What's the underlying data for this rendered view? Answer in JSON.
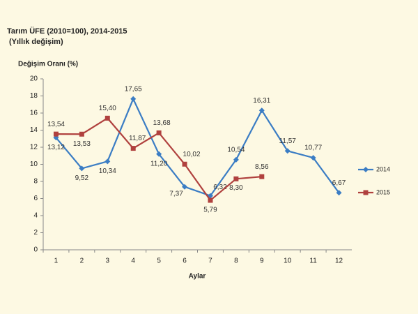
{
  "chart_data": {
    "type": "line",
    "title": "Tarım ÜFE (2010=100), 2014-2015",
    "subtitle": "(Yıllık değişim)",
    "y_label": "Değişim Oranı (%)",
    "x_label": "Aylar",
    "categories": [
      "1",
      "2",
      "3",
      "4",
      "5",
      "6",
      "7",
      "8",
      "9",
      "10",
      "11",
      "12"
    ],
    "series": [
      {
        "name": "2014",
        "color": "#3b7dc4",
        "marker": "diamond",
        "values": [
          13.12,
          9.52,
          10.34,
          17.65,
          11.2,
          7.37,
          6.32,
          10.54,
          16.31,
          11.57,
          10.77,
          6.67
        ],
        "value_labels": [
          "13,12",
          "9,52",
          "10,34",
          "17,65",
          "11,20",
          "7,37",
          "6,32",
          "10,54",
          "16,31",
          "11,57",
          "10,77",
          "6,67"
        ]
      },
      {
        "name": "2015",
        "color": "#b0413e",
        "marker": "square",
        "values": [
          13.54,
          13.53,
          15.4,
          11.87,
          13.68,
          10.02,
          5.79,
          8.3,
          8.56,
          null,
          null,
          null
        ],
        "value_labels": [
          "13,54",
          "13,53",
          "15,40",
          "11,87",
          "13,68",
          "10,02",
          "5,79",
          "8,30",
          "8,56",
          null,
          null,
          null
        ]
      }
    ],
    "ylim": [
      0,
      20
    ],
    "yticks": [
      0,
      2,
      4,
      6,
      8,
      10,
      12,
      14,
      16,
      18,
      20
    ],
    "grid": false,
    "legend": "right"
  }
}
